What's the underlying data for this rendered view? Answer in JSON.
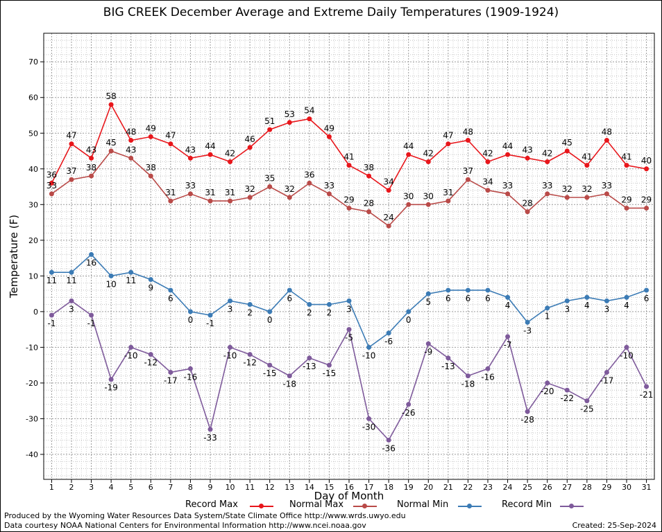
{
  "chart_data": {
    "type": "line",
    "title": "BIG CREEK December Average and Extreme Daily Temperatures (1909-1924)",
    "xlabel": "Day of Month",
    "ylabel": "Temperature (F)",
    "xlim": [
      0.6,
      31.4
    ],
    "ylim": [
      -47,
      78
    ],
    "yticks": [
      -40,
      -30,
      -20,
      -10,
      0,
      10,
      20,
      30,
      40,
      50,
      60,
      70
    ],
    "x": [
      1,
      2,
      3,
      4,
      5,
      6,
      7,
      8,
      9,
      10,
      11,
      12,
      13,
      14,
      15,
      16,
      17,
      18,
      19,
      20,
      21,
      22,
      23,
      24,
      25,
      26,
      27,
      28,
      29,
      30,
      31
    ],
    "grid": true,
    "legend_position": "bottom",
    "series": [
      {
        "name": "Record Max",
        "color": "#e8161b",
        "values": [
          36,
          47,
          43,
          58,
          48,
          49,
          47,
          43,
          44,
          42,
          46,
          51,
          53,
          54,
          49,
          41,
          38,
          34,
          44,
          42,
          47,
          48,
          42,
          44,
          43,
          42,
          45,
          41,
          48,
          41,
          40
        ]
      },
      {
        "name": "Normal Max",
        "color": "#b94a48",
        "values": [
          33,
          37,
          38,
          45,
          43,
          38,
          31,
          33,
          31,
          31,
          32,
          35,
          32,
          36,
          33,
          29,
          28,
          24,
          30,
          30,
          31,
          37,
          34,
          33,
          28,
          33,
          32,
          32,
          33,
          29,
          29
        ]
      },
      {
        "name": "Normal Min",
        "color": "#3b7bb5",
        "values": [
          11,
          11,
          16,
          10,
          11,
          9,
          6,
          0,
          -1,
          3,
          2,
          0,
          6,
          2,
          2,
          3,
          -10,
          -6,
          0,
          5,
          6,
          6,
          6,
          4,
          -3,
          1,
          3,
          4,
          3,
          4,
          6
        ]
      },
      {
        "name": "Record Min",
        "color": "#7e5a9b",
        "values": [
          -1,
          3,
          -1,
          -19,
          -10,
          -12,
          -17,
          -16,
          -33,
          -10,
          -12,
          -15,
          -18,
          -13,
          -15,
          -5,
          -30,
          -36,
          -26,
          -9,
          -13,
          -18,
          -16,
          -7,
          -28,
          -20,
          -22,
          -25,
          -17,
          -10,
          -21
        ]
      }
    ]
  },
  "footer": {
    "producer": "Produced by the Wyoming Water Resources Data System/State Climate Office http://www.wrds.uwyo.edu",
    "courtesy": "Data courtesy NOAA National Centers for Environmental Information http://www.ncei.noaa.gov",
    "created": "Created:  25-Sep-2024"
  }
}
